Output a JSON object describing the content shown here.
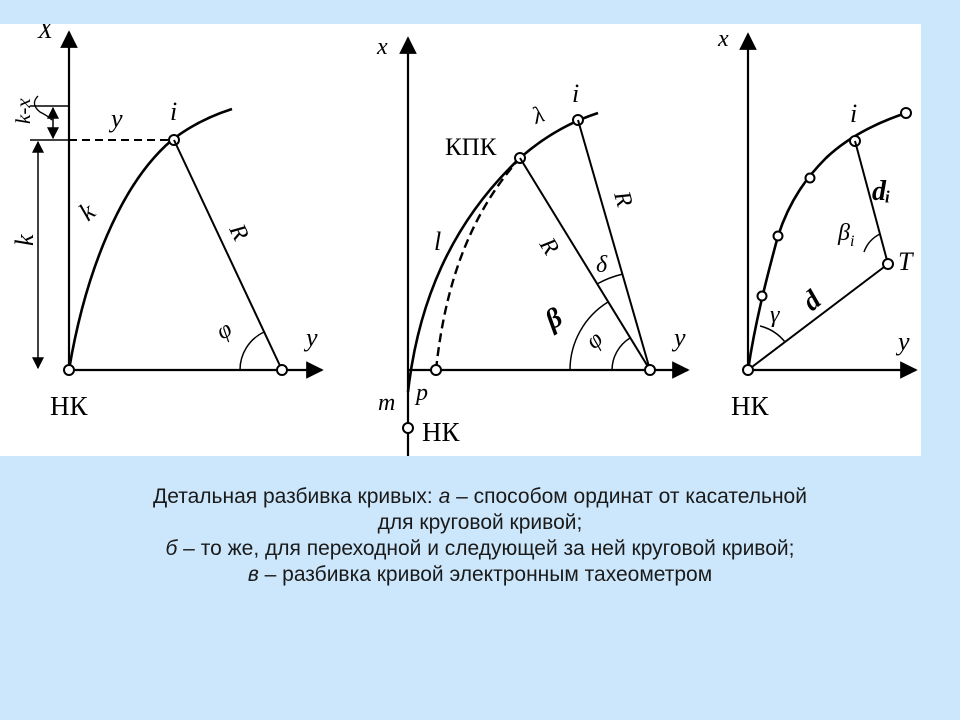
{
  "figure": {
    "panel_a": {
      "x_axis": "X",
      "y_axis": "y",
      "start": "НК",
      "point": "i",
      "y_label": "y",
      "arc": "k",
      "radius": "R",
      "angle": "φ",
      "k_minus_x": "k-x",
      "k_len": "k"
    },
    "panel_b": {
      "x_axis": "x",
      "y_axis": "y",
      "kpk": "КПК",
      "point": "i",
      "lambda": "λ",
      "arc_l": "l",
      "radius_1": "R",
      "radius_2": "R",
      "delta": "δ",
      "beta": "β",
      "phi": "φ",
      "m": "m",
      "p": "p",
      "start": "НК"
    },
    "panel_c": {
      "x_axis": "x",
      "y_axis": "y",
      "point": "i",
      "di": "dᵢ",
      "beta_i": "β",
      "beta_i_sub": "i",
      "t": "T",
      "gamma": "γ",
      "d": "d",
      "start": "НК"
    }
  },
  "caption": {
    "line1_pre": "Детальная разбивка кривых: ",
    "a": "а",
    "line1_post": " – способом ординат от касательной",
    "line2": "для круговой кривой;",
    "b": "б",
    "line3_post": " – то же, для переходной и следующей за ней круговой кривой;",
    "v": "в",
    "line4_post": " – разбивка кривой электронным тахеометром"
  }
}
